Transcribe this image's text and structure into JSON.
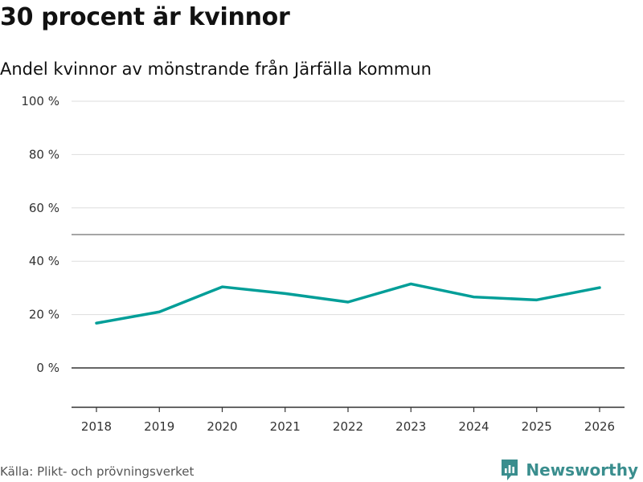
{
  "chart_data": {
    "type": "line",
    "title": "30 procent är kvinnor",
    "subtitle": "Andel kvinnor av mönstrande från Järfälla kommun",
    "categories": [
      "2018",
      "2019",
      "2020",
      "2021",
      "2022",
      "2023",
      "2024",
      "2025",
      "2026"
    ],
    "series": [
      {
        "name": "Andel kvinnor",
        "values": [
          16.8,
          21.0,
          30.4,
          27.9,
          24.7,
          31.5,
          26.6,
          25.5,
          30.1
        ]
      }
    ],
    "y_ticks": [
      {
        "value": 0,
        "label": "0 %"
      },
      {
        "value": 20,
        "label": "20 %"
      },
      {
        "value": 40,
        "label": "40 %"
      },
      {
        "value": 60,
        "label": "60 %"
      },
      {
        "value": 80,
        "label": "80 %"
      },
      {
        "value": 100,
        "label": "100 %"
      }
    ],
    "reference_line": 50,
    "ylim": [
      -15,
      100
    ],
    "xlabel": "",
    "ylabel": "",
    "line_color": "#009e98"
  },
  "source": "Källa: Plikt- och prövningsverket",
  "brand": {
    "name": "Newsworthy",
    "icon": "newsworthy-logo-icon",
    "color": "#3a8e8e"
  }
}
